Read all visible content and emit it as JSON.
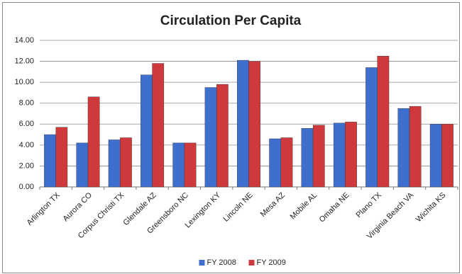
{
  "chart_data": {
    "type": "bar",
    "title": "Circulation Per Capita",
    "categories": [
      "Arlington TX",
      "Aurora CO",
      "Corpus Christi TX",
      "Glendale AZ",
      "Greensboro NC",
      "Lexington KY",
      "Lincoln NE",
      "Mesa AZ",
      "Mobile AL",
      "Omaha NE",
      "Plano TX",
      "Virginia Beach VA",
      "Wichita KS"
    ],
    "series": [
      {
        "name": "FY 2008",
        "color": "#3e6fcf",
        "values": [
          5.0,
          4.2,
          4.5,
          10.7,
          4.2,
          9.5,
          12.1,
          4.6,
          5.6,
          6.1,
          11.4,
          7.5,
          6.0
        ]
      },
      {
        "name": "FY 2009",
        "color": "#d0393b",
        "values": [
          5.7,
          8.6,
          4.7,
          11.8,
          4.2,
          9.8,
          12.0,
          4.7,
          5.9,
          6.2,
          12.5,
          7.7,
          6.0
        ]
      }
    ],
    "ylim": [
      0,
      14
    ],
    "yticks": [
      {
        "value": 0,
        "label": "0.00"
      },
      {
        "value": 2,
        "label": "2.00"
      },
      {
        "value": 4,
        "label": "4.00"
      },
      {
        "value": 6,
        "label": "6.00"
      },
      {
        "value": 8,
        "label": "8.00"
      },
      {
        "value": 10,
        "label": "10.00"
      },
      {
        "value": 12,
        "label": "12.00"
      },
      {
        "value": 14,
        "label": "14.00"
      }
    ],
    "grid": true,
    "legend": "bottom"
  }
}
